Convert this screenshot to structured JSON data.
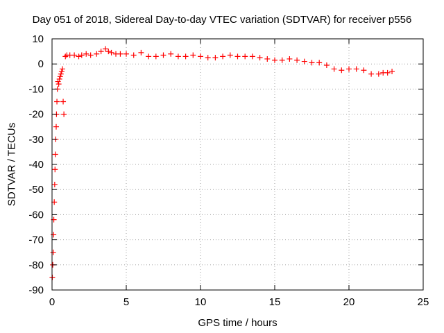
{
  "chart_data": {
    "type": "scatter",
    "title": "Day 051 of 2018, Sidereal Day-to-day VTEC variation (SDTVAR) for receiver p556",
    "xlabel": "GPS time / hours",
    "ylabel": "SDTVAR / TECUs",
    "xlim": [
      0,
      25
    ],
    "ylim": [
      -90,
      10
    ],
    "xticks": [
      0,
      5,
      10,
      15,
      20,
      25
    ],
    "xtick_labels": [
      "0",
      "5",
      "10",
      "15",
      "20",
      "25"
    ],
    "yticks": [
      -90,
      -80,
      -70,
      -60,
      -50,
      -40,
      -30,
      -20,
      -10,
      0,
      10
    ],
    "ytick_labels": [
      "-90",
      "-80",
      "-70",
      "-60",
      "-50",
      "-40",
      "-30",
      "-20",
      "-10",
      "0",
      "10"
    ],
    "grid": true,
    "marker": "+",
    "series": [
      {
        "name": "SDTVAR",
        "color": "#ff0000",
        "x": [
          0.02,
          0.05,
          0.08,
          0.1,
          0.12,
          0.15,
          0.18,
          0.2,
          0.22,
          0.25,
          0.28,
          0.3,
          0.33,
          0.36,
          0.4,
          0.45,
          0.5,
          0.55,
          0.6,
          0.65,
          0.7,
          0.75,
          0.8,
          0.9,
          1.0,
          1.2,
          1.5,
          1.8,
          2.0,
          2.3,
          2.6,
          3.0,
          3.3,
          3.6,
          3.8,
          4.0,
          4.3,
          4.6,
          5.0,
          5.5,
          6.0,
          6.5,
          7.0,
          7.5,
          8.0,
          8.5,
          9.0,
          9.5,
          10.0,
          10.5,
          11.0,
          11.5,
          12.0,
          12.5,
          13.0,
          13.5,
          14.0,
          14.5,
          15.0,
          15.5,
          16.0,
          16.5,
          17.0,
          17.5,
          18.0,
          18.5,
          19.0,
          19.5,
          20.0,
          20.5,
          21.0,
          21.5,
          22.0,
          22.3,
          22.6,
          22.9
        ],
        "y": [
          -85,
          -80,
          -75,
          -68,
          -62,
          -55,
          -48,
          -42,
          -36,
          -30,
          -25,
          -20,
          -15,
          -10,
          -7,
          -8,
          -6,
          -5,
          -4,
          -3,
          -2,
          -15,
          -20,
          3,
          3.5,
          3.5,
          3.5,
          3,
          3.5,
          4,
          3.5,
          4,
          5,
          6,
          5,
          4.5,
          4,
          4,
          4,
          3.5,
          4.5,
          3,
          3,
          3.5,
          4,
          3,
          3,
          3.5,
          3,
          2.5,
          2.5,
          3,
          3.5,
          3,
          3,
          3,
          2.5,
          2,
          1.5,
          1.5,
          2,
          1.5,
          1,
          0.5,
          0.5,
          -0.5,
          -2,
          -2.5,
          -2,
          -2,
          -2.5,
          -4,
          -4,
          -3.5,
          -3.5,
          -3
        ]
      }
    ]
  }
}
